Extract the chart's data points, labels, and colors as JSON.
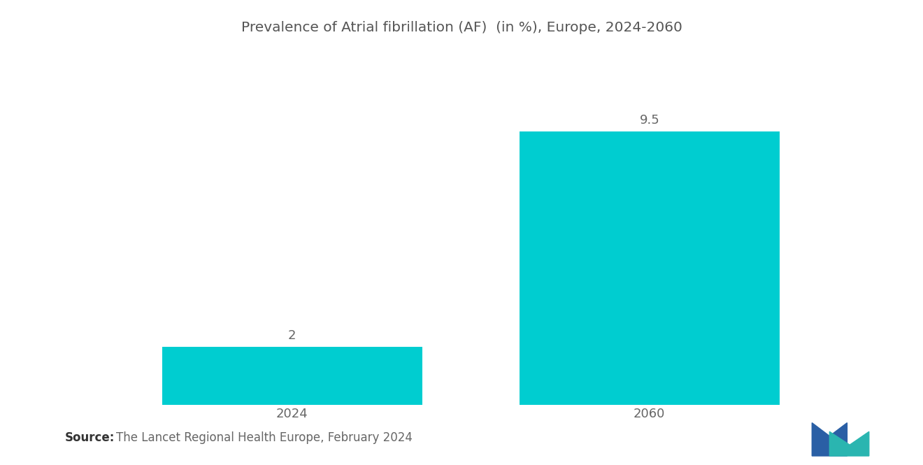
{
  "title": "Prevalence of Atrial fibrillation (AF)  (in %), Europe, 2024-2060",
  "categories": [
    "2024",
    "2060"
  ],
  "values": [
    2,
    9.5
  ],
  "bar_color": "#00CDD0",
  "bar_width": 0.32,
  "value_labels": [
    "2",
    "9.5"
  ],
  "ylim": [
    0,
    11
  ],
  "background_color": "#ffffff",
  "source_bold": "Source:",
  "source_text": "The Lancet Regional Health Europe, February 2024",
  "title_fontsize": 14.5,
  "label_fontsize": 13,
  "tick_fontsize": 13,
  "source_fontsize": 12,
  "x_positions": [
    0.28,
    0.72
  ]
}
